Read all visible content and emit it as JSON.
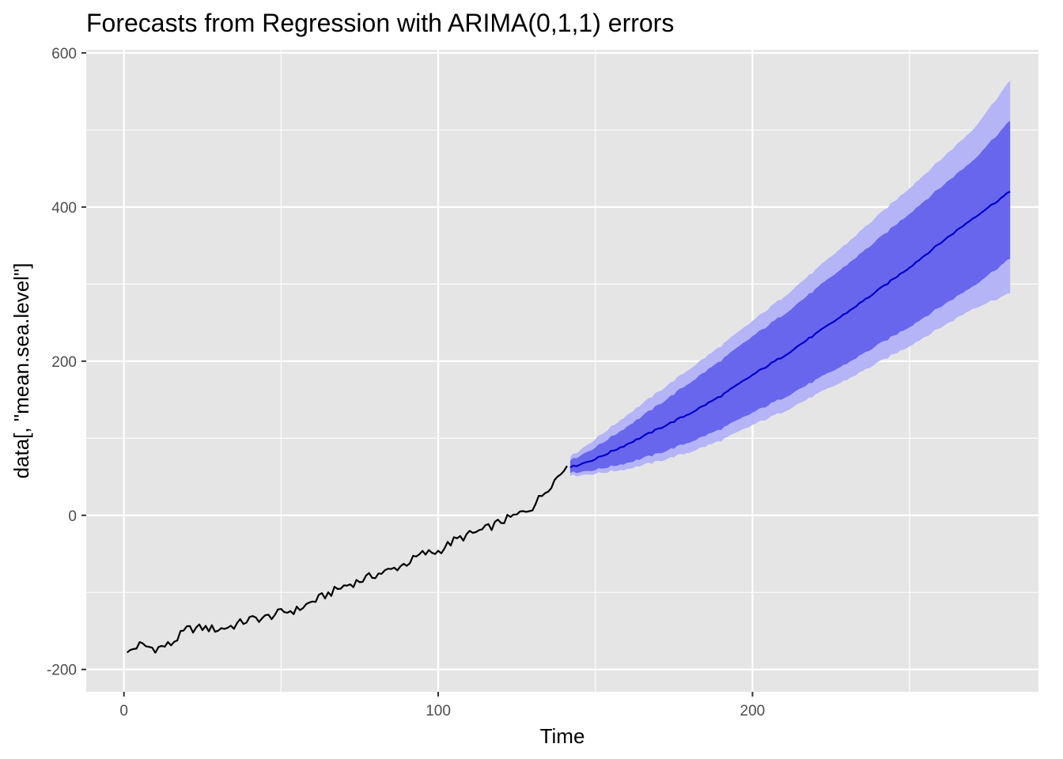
{
  "chart_data": {
    "type": "line",
    "title": "Forecasts from Regression with ARIMA(0,1,1) errors",
    "xlabel": "Time",
    "ylabel": "data[, \"mean.sea.level\"]",
    "xlim": [
      -12,
      291
    ],
    "ylim": [
      -229,
      604
    ],
    "x_ticks": [
      0,
      100,
      200
    ],
    "x_tick_labels": [
      "0",
      "100",
      "200"
    ],
    "y_ticks": [
      -200,
      0,
      200,
      400,
      600
    ],
    "y_tick_labels": [
      "-200",
      "0",
      "200",
      "400",
      "600"
    ],
    "grid": true,
    "legend": "none",
    "colors": {
      "panel_background": "#e5e5e5",
      "grid": "#ffffff",
      "observed_line": "#000000",
      "forecast_line": "#0000cc",
      "band_80": "#6866ec",
      "band_95": "#b4b4f6"
    },
    "observed": {
      "x": [
        1,
        5,
        10,
        15,
        20,
        25,
        30,
        35,
        40,
        45,
        50,
        55,
        60,
        65,
        70,
        75,
        80,
        85,
        90,
        95,
        100,
        105,
        110,
        115,
        120,
        125,
        130,
        135,
        141
      ],
      "y": [
        -178,
        -168,
        -173,
        -167,
        -148,
        -146,
        -148,
        -143,
        -135,
        -133,
        -126,
        -123,
        -112,
        -102,
        -92,
        -85,
        -77,
        -71,
        -62,
        -50,
        -47,
        -33,
        -25,
        -18,
        -8,
        0,
        11,
        36,
        64
      ]
    },
    "forecast": {
      "x": [
        142,
        150,
        160,
        170,
        180,
        190,
        200,
        210,
        220,
        230,
        240,
        250,
        260,
        270,
        282
      ],
      "mean": [
        62,
        73,
        92,
        112,
        132,
        155,
        182,
        207,
        235,
        263,
        292,
        322,
        354,
        385,
        420
      ],
      "lo80": [
        55,
        59,
        68,
        80,
        95,
        112,
        133,
        153,
        175,
        197,
        221,
        245,
        271,
        297,
        333
      ],
      "hi80": [
        71,
        88,
        115,
        143,
        172,
        201,
        232,
        261,
        293,
        325,
        358,
        392,
        426,
        460,
        512
      ],
      "lo95": [
        51,
        54,
        60,
        70,
        82,
        97,
        117,
        135,
        156,
        176,
        198,
        220,
        244,
        268,
        288
      ],
      "hi95": [
        76,
        99,
        130,
        160,
        190,
        220,
        252,
        284,
        318,
        353,
        389,
        425,
        462,
        500,
        564
      ]
    }
  }
}
